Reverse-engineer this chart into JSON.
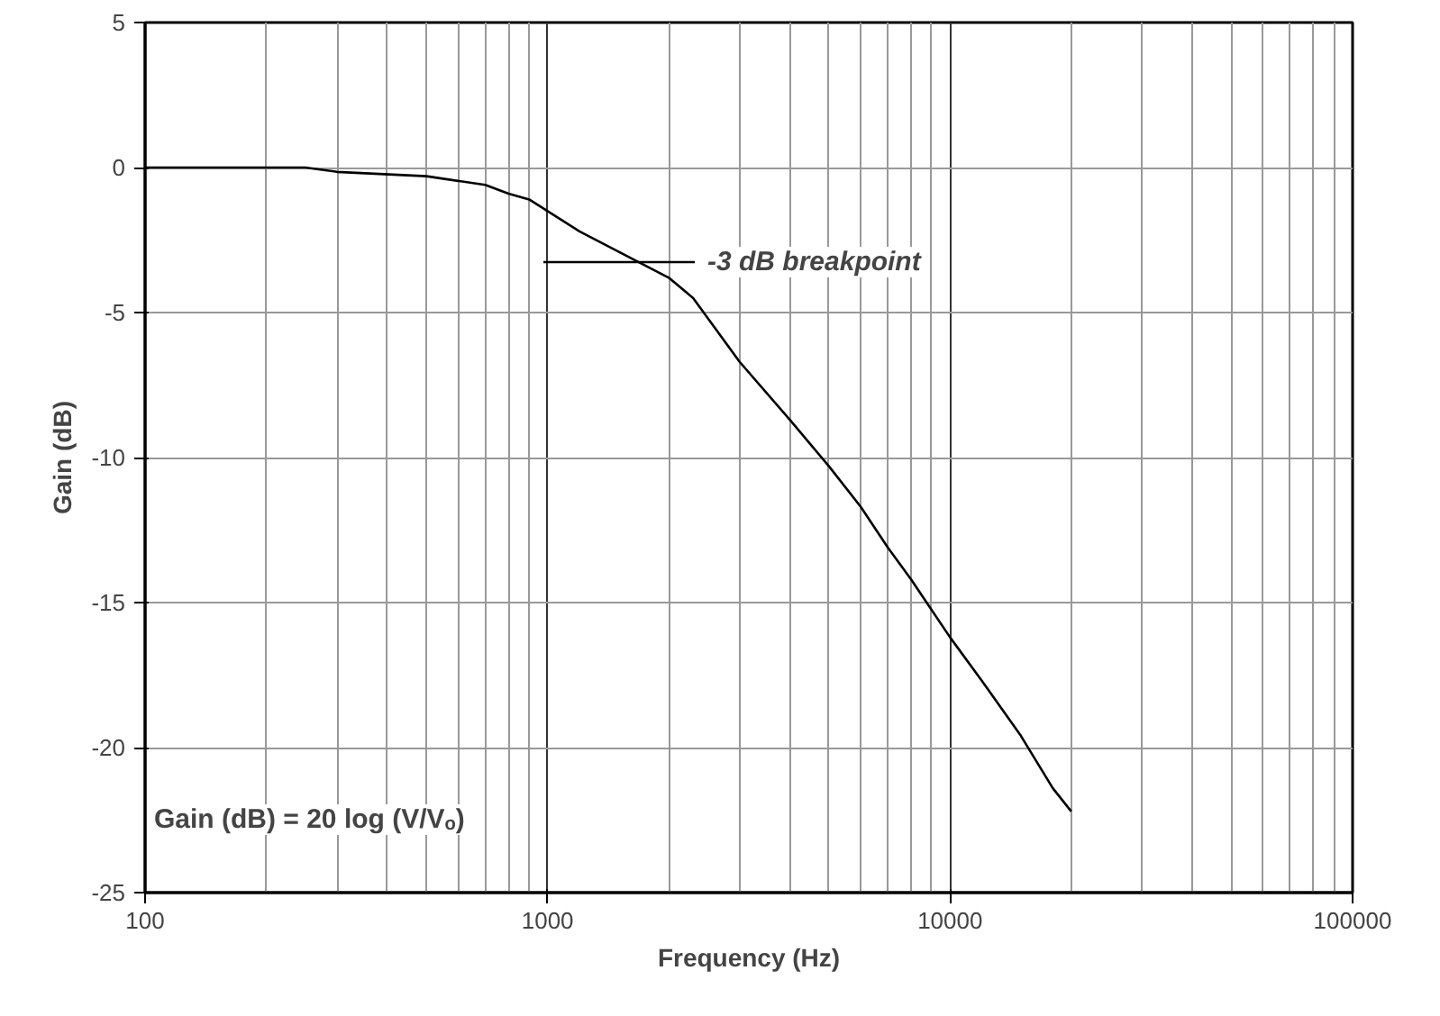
{
  "chart_data": {
    "type": "line",
    "xlabel": "Frequency (Hz)",
    "ylabel": "Gain (dB)",
    "log": "x",
    "x": [
      100,
      250,
      300,
      500,
      700,
      800,
      900,
      1000,
      1200,
      1500,
      2000,
      2300,
      3000,
      4000,
      5000,
      6000,
      7000,
      8000,
      10000,
      12000,
      15000,
      18000,
      20000
    ],
    "series": [
      {
        "color": "#000000",
        "values": [
          0,
          0,
          -0.15,
          -0.3,
          -0.6,
          -0.9,
          -1.1,
          -1.5,
          -2.2,
          -2.9,
          -3.8,
          -4.5,
          -6.7,
          -8.7,
          -10.3,
          -11.7,
          -13.1,
          -14.2,
          -16.2,
          -17.7,
          -19.6,
          -21.4,
          -22.2
        ]
      }
    ],
    "xlim": [
      100,
      100000
    ],
    "xticks": [
      100,
      1000,
      10000,
      100000
    ],
    "ylim": [
      -25,
      5
    ],
    "yticks": [
      -25,
      -20,
      -15,
      -10,
      -5,
      0,
      5
    ],
    "grid": true,
    "marker": "none",
    "line_style": "solid",
    "annotations": [
      "-3 dB breakpoint",
      "Gain (dB) = 20 log (V/Vₒ)"
    ]
  }
}
